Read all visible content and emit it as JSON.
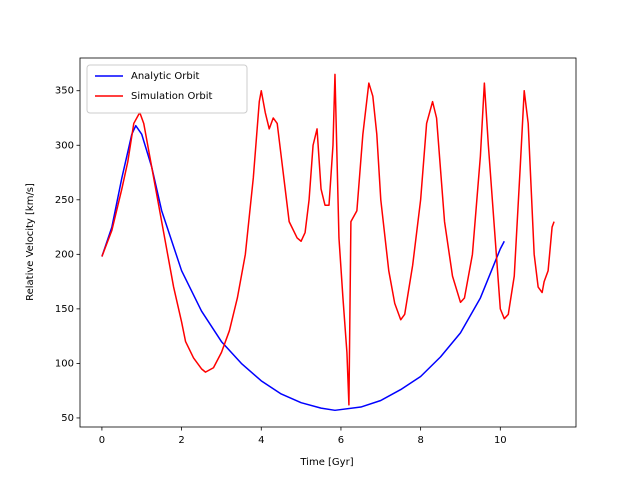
{
  "chart_data": {
    "type": "line",
    "x_label": "Time [Gyr]",
    "y_label": "Relative Velocity [km/s]",
    "xlim": [
      -0.55,
      11.9
    ],
    "ylim": [
      41.7,
      380
    ],
    "xticks": [
      0,
      2,
      4,
      6,
      8,
      10
    ],
    "yticks": [
      50,
      100,
      150,
      200,
      250,
      300,
      350
    ],
    "legend": "upper left",
    "series": [
      {
        "name": "Analytic Orbit",
        "color": "#0000ff",
        "x": [
          0,
          0.25,
          0.5,
          0.75,
          0.85,
          1.0,
          1.25,
          1.5,
          2,
          2.5,
          3,
          3.5,
          4,
          4.5,
          5,
          5.5,
          5.85,
          6.5,
          7,
          7.5,
          8,
          8.5,
          9,
          9.5,
          10,
          10.1
        ],
        "values": [
          198,
          225,
          270,
          310,
          318,
          310,
          280,
          240,
          185,
          148,
          120,
          100,
          84,
          72,
          64,
          59,
          57,
          60,
          66,
          76,
          88,
          106,
          128,
          160,
          205,
          212
        ]
      },
      {
        "name": "Simulation Orbit",
        "color": "#ff0000",
        "x": [
          0,
          0.25,
          0.5,
          0.65,
          0.8,
          0.95,
          1.05,
          1.2,
          1.4,
          1.6,
          1.8,
          2.0,
          2.1,
          2.3,
          2.5,
          2.6,
          2.8,
          3.0,
          3.2,
          3.4,
          3.6,
          3.8,
          3.95,
          4.0,
          4.1,
          4.2,
          4.3,
          4.4,
          4.5,
          4.6,
          4.7,
          4.9,
          5.0,
          5.1,
          5.2,
          5.3,
          5.4,
          5.5,
          5.6,
          5.7,
          5.8,
          5.85,
          5.95,
          6.05,
          6.15,
          6.2,
          6.25,
          6.4,
          6.55,
          6.7,
          6.8,
          6.9,
          7.0,
          7.2,
          7.35,
          7.5,
          7.6,
          7.8,
          8.0,
          8.15,
          8.3,
          8.4,
          8.6,
          8.8,
          9.0,
          9.1,
          9.3,
          9.5,
          9.6,
          9.7,
          9.9,
          10.0,
          10.1,
          10.2,
          10.35,
          10.5,
          10.6,
          10.7,
          10.85,
          10.95,
          11.05,
          11.1,
          11.2,
          11.3,
          11.35
        ],
        "values": [
          198,
          222,
          260,
          285,
          320,
          330,
          320,
          290,
          250,
          210,
          170,
          138,
          120,
          105,
          95,
          92,
          96,
          110,
          130,
          160,
          200,
          270,
          340,
          350,
          330,
          315,
          325,
          320,
          290,
          260,
          230,
          215,
          212,
          220,
          250,
          300,
          315,
          260,
          245,
          245,
          300,
          365,
          215,
          160,
          110,
          62,
          230,
          240,
          310,
          357,
          345,
          310,
          250,
          185,
          155,
          140,
          145,
          190,
          250,
          320,
          340,
          325,
          230,
          180,
          156,
          160,
          200,
          290,
          357,
          300,
          200,
          150,
          141,
          145,
          180,
          280,
          350,
          320,
          200,
          170,
          165,
          175,
          185,
          225,
          230
        ]
      }
    ]
  }
}
